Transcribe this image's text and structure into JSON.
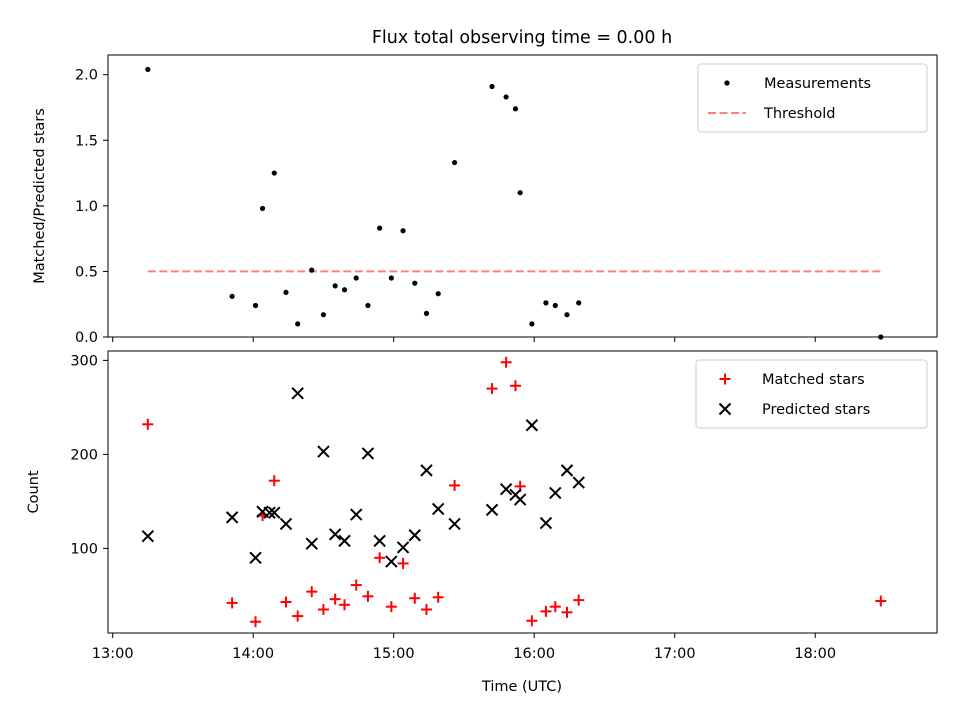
{
  "chart_data": [
    {
      "type": "scatter",
      "title": "Flux total observing time = 0.00 h",
      "xlabel": "",
      "ylabel": "Matched/Predicted stars",
      "xlim": [
        "12:58",
        "18:52"
      ],
      "ylim": [
        0,
        2.15
      ],
      "yticks": [
        "0.0",
        "0.5",
        "1.0",
        "1.5",
        "2.0"
      ],
      "legend": "top-right",
      "series": [
        {
          "name": "Measurements",
          "marker": "dot",
          "color": "#000000",
          "points": [
            {
              "x": "13:15",
              "y": 2.04
            },
            {
              "x": "13:51",
              "y": 0.31
            },
            {
              "x": "14:01",
              "y": 0.24
            },
            {
              "x": "14:04",
              "y": 0.98
            },
            {
              "x": "14:09",
              "y": 1.25
            },
            {
              "x": "14:14",
              "y": 0.34
            },
            {
              "x": "14:19",
              "y": 0.1
            },
            {
              "x": "14:25",
              "y": 0.51
            },
            {
              "x": "14:30",
              "y": 0.17
            },
            {
              "x": "14:35",
              "y": 0.39
            },
            {
              "x": "14:39",
              "y": 0.36
            },
            {
              "x": "14:44",
              "y": 0.45
            },
            {
              "x": "14:49",
              "y": 0.24
            },
            {
              "x": "14:54",
              "y": 0.83
            },
            {
              "x": "14:59",
              "y": 0.45
            },
            {
              "x": "15:04",
              "y": 0.81
            },
            {
              "x": "15:09",
              "y": 0.41
            },
            {
              "x": "15:14",
              "y": 0.18
            },
            {
              "x": "15:19",
              "y": 0.33
            },
            {
              "x": "15:26",
              "y": 1.33
            },
            {
              "x": "15:42",
              "y": 1.91
            },
            {
              "x": "15:48",
              "y": 1.83
            },
            {
              "x": "15:52",
              "y": 1.74
            },
            {
              "x": "15:54",
              "y": 1.1
            },
            {
              "x": "15:59",
              "y": 0.1
            },
            {
              "x": "16:05",
              "y": 0.26
            },
            {
              "x": "16:09",
              "y": 0.24
            },
            {
              "x": "16:14",
              "y": 0.17
            },
            {
              "x": "16:19",
              "y": 0.26
            },
            {
              "x": "18:28",
              "y": 0.0
            }
          ]
        },
        {
          "name": "Threshold",
          "marker": "dashed-line",
          "color": "#ff7f7f",
          "points": [
            {
              "x": "13:15",
              "y": 0.5
            },
            {
              "x": "18:28",
              "y": 0.5
            }
          ]
        }
      ]
    },
    {
      "type": "scatter",
      "title": "",
      "xlabel": "Time (UTC)",
      "ylabel": "Count",
      "xlim": [
        "12:58",
        "18:52"
      ],
      "ylim": [
        10,
        310
      ],
      "xticks": [
        "13:00",
        "14:00",
        "15:00",
        "16:00",
        "17:00",
        "18:00"
      ],
      "yticks": [
        "100",
        "200",
        "300"
      ],
      "legend": "top-right",
      "series": [
        {
          "name": "Matched stars",
          "marker": "plus",
          "color": "#ff0000",
          "points": [
            {
              "x": "13:15",
              "y": 232
            },
            {
              "x": "13:51",
              "y": 42
            },
            {
              "x": "14:01",
              "y": 22
            },
            {
              "x": "14:04",
              "y": 135
            },
            {
              "x": "14:09",
              "y": 172
            },
            {
              "x": "14:14",
              "y": 43
            },
            {
              "x": "14:19",
              "y": 28
            },
            {
              "x": "14:25",
              "y": 54
            },
            {
              "x": "14:30",
              "y": 35
            },
            {
              "x": "14:35",
              "y": 46
            },
            {
              "x": "14:39",
              "y": 40
            },
            {
              "x": "14:44",
              "y": 61
            },
            {
              "x": "14:49",
              "y": 49
            },
            {
              "x": "14:54",
              "y": 90
            },
            {
              "x": "14:59",
              "y": 38
            },
            {
              "x": "15:04",
              "y": 84
            },
            {
              "x": "15:09",
              "y": 47
            },
            {
              "x": "15:14",
              "y": 35
            },
            {
              "x": "15:19",
              "y": 48
            },
            {
              "x": "15:26",
              "y": 167
            },
            {
              "x": "15:42",
              "y": 270
            },
            {
              "x": "15:48",
              "y": 298
            },
            {
              "x": "15:52",
              "y": 273
            },
            {
              "x": "15:54",
              "y": 166
            },
            {
              "x": "15:59",
              "y": 23
            },
            {
              "x": "16:05",
              "y": 33
            },
            {
              "x": "16:09",
              "y": 38
            },
            {
              "x": "16:14",
              "y": 32
            },
            {
              "x": "16:19",
              "y": 45
            },
            {
              "x": "18:28",
              "y": 44
            }
          ]
        },
        {
          "name": "Predicted stars",
          "marker": "x",
          "color": "#000000",
          "points": [
            {
              "x": "13:15",
              "y": 113
            },
            {
              "x": "13:51",
              "y": 133
            },
            {
              "x": "14:01",
              "y": 90
            },
            {
              "x": "14:04",
              "y": 139
            },
            {
              "x": "14:07",
              "y": 138
            },
            {
              "x": "14:09",
              "y": 138
            },
            {
              "x": "14:14",
              "y": 126
            },
            {
              "x": "14:19",
              "y": 265
            },
            {
              "x": "14:25",
              "y": 105
            },
            {
              "x": "14:30",
              "y": 203
            },
            {
              "x": "14:35",
              "y": 115
            },
            {
              "x": "14:39",
              "y": 108
            },
            {
              "x": "14:44",
              "y": 136
            },
            {
              "x": "14:49",
              "y": 201
            },
            {
              "x": "14:54",
              "y": 108
            },
            {
              "x": "14:59",
              "y": 86
            },
            {
              "x": "15:04",
              "y": 101
            },
            {
              "x": "15:09",
              "y": 114
            },
            {
              "x": "15:14",
              "y": 183
            },
            {
              "x": "15:19",
              "y": 142
            },
            {
              "x": "15:26",
              "y": 126
            },
            {
              "x": "15:42",
              "y": 141
            },
            {
              "x": "15:48",
              "y": 163
            },
            {
              "x": "15:52",
              "y": 157
            },
            {
              "x": "15:54",
              "y": 152
            },
            {
              "x": "15:59",
              "y": 231
            },
            {
              "x": "16:05",
              "y": 127
            },
            {
              "x": "16:09",
              "y": 159
            },
            {
              "x": "16:14",
              "y": 183
            },
            {
              "x": "16:19",
              "y": 170
            }
          ]
        }
      ]
    }
  ]
}
